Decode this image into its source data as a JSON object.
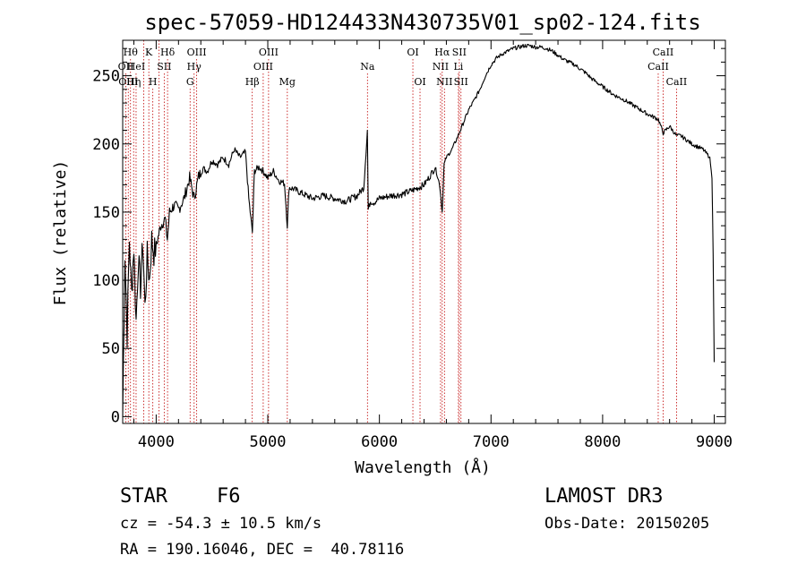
{
  "chart_data": {
    "type": "line",
    "title": "spec-57059-HD124433N430735V01_sp02-124.fits",
    "xlabel": "Wavelength (Å)",
    "ylabel": "Flux (relative)",
    "xlim": [
      3700,
      9100
    ],
    "ylim": [
      -5,
      276
    ],
    "xticks": [
      4000,
      5000,
      6000,
      7000,
      8000,
      9000
    ],
    "xtick_labels": [
      "4000",
      "5000",
      "6000",
      "7000",
      "8000",
      "9000"
    ],
    "yticks": [
      0,
      50,
      100,
      150,
      200,
      250
    ],
    "ytick_labels": [
      "0",
      "50",
      "100",
      "150",
      "200",
      "250"
    ],
    "series": [
      {
        "name": "flux",
        "x": [
          3700,
          3720,
          3740,
          3760,
          3780,
          3800,
          3820,
          3840,
          3860,
          3880,
          3900,
          3920,
          3940,
          3960,
          3980,
          4000,
          4040,
          4080,
          4100,
          4120,
          4160,
          4200,
          4250,
          4300,
          4340,
          4380,
          4420,
          4460,
          4500,
          4550,
          4600,
          4650,
          4700,
          4750,
          4800,
          4830,
          4862,
          4880,
          4920,
          4960,
          5000,
          5050,
          5100,
          5150,
          5175,
          5190,
          5230,
          5300,
          5400,
          5500,
          5600,
          5700,
          5800,
          5860,
          5892,
          5900,
          5920,
          5950,
          6000,
          6100,
          6200,
          6300,
          6400,
          6450,
          6500,
          6540,
          6563,
          6580,
          6600,
          6650,
          6700,
          6750,
          6800,
          6850,
          6900,
          6950,
          7000,
          7050,
          7100,
          7150,
          7200,
          7250,
          7300,
          7350,
          7400,
          7450,
          7500,
          7550,
          7600,
          7650,
          7700,
          7750,
          7800,
          7850,
          7900,
          7950,
          8000,
          8100,
          8200,
          8300,
          8400,
          8500,
          8542,
          8600,
          8662,
          8700,
          8800,
          8900,
          8960,
          8980,
          8990,
          9000
        ],
        "values": [
          0,
          120,
          60,
          130,
          90,
          125,
          70,
          115,
          95,
          128,
          80,
          118,
          100,
          130,
          120,
          125,
          140,
          145,
          130,
          150,
          155,
          152,
          160,
          175,
          160,
          176,
          182,
          180,
          188,
          185,
          190,
          185,
          196,
          190,
          194,
          160,
          135,
          180,
          183,
          180,
          175,
          180,
          173,
          171,
          140,
          168,
          167,
          164,
          160,
          162,
          160,
          158,
          162,
          168,
          210,
          152,
          158,
          157,
          160,
          162,
          163,
          166,
          170,
          176,
          183,
          170,
          150,
          185,
          190,
          196,
          205,
          215,
          225,
          232,
          240,
          250,
          258,
          263,
          266,
          268,
          270,
          271,
          272,
          272,
          271,
          271,
          270,
          268,
          265,
          262,
          260,
          258,
          255,
          252,
          248,
          245,
          242,
          236,
          232,
          227,
          222,
          218,
          208,
          213,
          206,
          206,
          200,
          196,
          190,
          175,
          120,
          40
        ]
      }
    ],
    "lines": [
      {
        "x": 3728,
        "label": "OII",
        "row": 2
      },
      {
        "x": 3750,
        "label": "OIII",
        "row": 3
      },
      {
        "x": 3770,
        "label": "Hθ",
        "row": 1
      },
      {
        "x": 3798,
        "label": "Hη",
        "row": 3
      },
      {
        "x": 3820,
        "label": "HeI",
        "row": 2
      },
      {
        "x": 3889,
        "label": "",
        "row": 0
      },
      {
        "x": 3934,
        "label": "K",
        "row": 1
      },
      {
        "x": 3970,
        "label": "H",
        "row": 3
      },
      {
        "x": 4026,
        "label": "",
        "row": 0
      },
      {
        "x": 4072,
        "label": "SII",
        "row": 2
      },
      {
        "x": 4102,
        "label": "Hδ",
        "row": 1
      },
      {
        "x": 4304,
        "label": "G",
        "row": 3
      },
      {
        "x": 4340,
        "label": "Hγ",
        "row": 2
      },
      {
        "x": 4363,
        "label": "OIII",
        "row": 1
      },
      {
        "x": 4861,
        "label": "Hβ",
        "row": 3
      },
      {
        "x": 4959,
        "label": "OIII",
        "row": 2
      },
      {
        "x": 5007,
        "label": "OIII",
        "row": 1
      },
      {
        "x": 5175,
        "label": "Mg",
        "row": 3
      },
      {
        "x": 5893,
        "label": "Na",
        "row": 2
      },
      {
        "x": 6300,
        "label": "OI",
        "row": 1
      },
      {
        "x": 6364,
        "label": "OI",
        "row": 3
      },
      {
        "x": 6548,
        "label": "NII",
        "row": 2
      },
      {
        "x": 6563,
        "label": "Hα",
        "row": 1
      },
      {
        "x": 6583,
        "label": "NII",
        "row": 3
      },
      {
        "x": 6708,
        "label": "Li",
        "row": 2
      },
      {
        "x": 6716,
        "label": "SII",
        "row": 1
      },
      {
        "x": 6731,
        "label": "SII",
        "row": 3
      },
      {
        "x": 8498,
        "label": "CaII",
        "row": 2
      },
      {
        "x": 8542,
        "label": "CaII",
        "row": 1
      },
      {
        "x": 8662,
        "label": "CaII",
        "row": 3
      }
    ]
  },
  "info": {
    "object_class": "STAR",
    "subclass": "F6",
    "survey": "LAMOST DR3",
    "redshift": "cz = -54.3 ± 10.5 km/s",
    "obs_date": "Obs-Date: 20150205",
    "coords": "RA = 190.16046, DEC =  40.78116"
  },
  "colors": {
    "spectrum": "#000000",
    "line_markers": "#c00000",
    "axes": "#000000"
  }
}
